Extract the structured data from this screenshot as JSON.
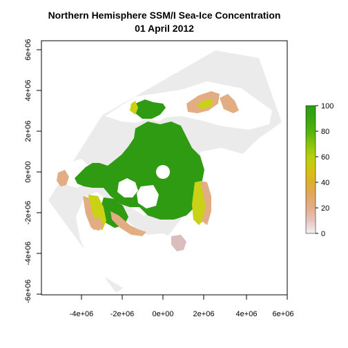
{
  "title": {
    "line1": "Northern Hemisphere SSM/I Sea-Ice Concentration",
    "line2": "01 April 2012"
  },
  "colors": {
    "grid_domain": "#ebebeb",
    "ice_high": "#2e9b12",
    "ice_mid": "#c9d214",
    "ice_low": "#e3ad83",
    "ice_margin": "#dcbdbd",
    "land_white": "#ffffff",
    "frame": "#000000"
  },
  "legend": {
    "scale": [
      {
        "value": 0,
        "color": "#f2f2f2"
      },
      {
        "value": 10,
        "color": "#e6c3be"
      },
      {
        "value": 20,
        "color": "#e4ad8a"
      },
      {
        "value": 30,
        "color": "#e2a65f"
      },
      {
        "value": 40,
        "color": "#dcb02c"
      },
      {
        "value": 50,
        "color": "#d4c310"
      },
      {
        "value": 60,
        "color": "#b6cf0f"
      },
      {
        "value": 70,
        "color": "#86c30e"
      },
      {
        "value": 80,
        "color": "#53b20f"
      },
      {
        "value": 90,
        "color": "#39a511"
      },
      {
        "value": 100,
        "color": "#2b9b12"
      }
    ],
    "ticks": [
      "100",
      "80",
      "60",
      "40",
      "20",
      "0"
    ]
  },
  "axes": {
    "x_ticks": [
      "-4e+06",
      "-2e+06",
      "0e+00",
      "2e+06",
      "4e+06",
      "6e+06"
    ],
    "y_ticks": [
      "6e+06",
      "4e+06",
      "2e+06",
      "0e+00",
      "-2e+06",
      "-4e+06",
      "-6e+06"
    ]
  },
  "map_data": {
    "projection": "polar stereographic (north)",
    "variable": "sea-ice concentration (%)",
    "value_range": [
      0,
      100
    ],
    "x_range": [
      -6000000,
      6000000
    ],
    "y_range": [
      -6000000,
      6000000
    ]
  }
}
